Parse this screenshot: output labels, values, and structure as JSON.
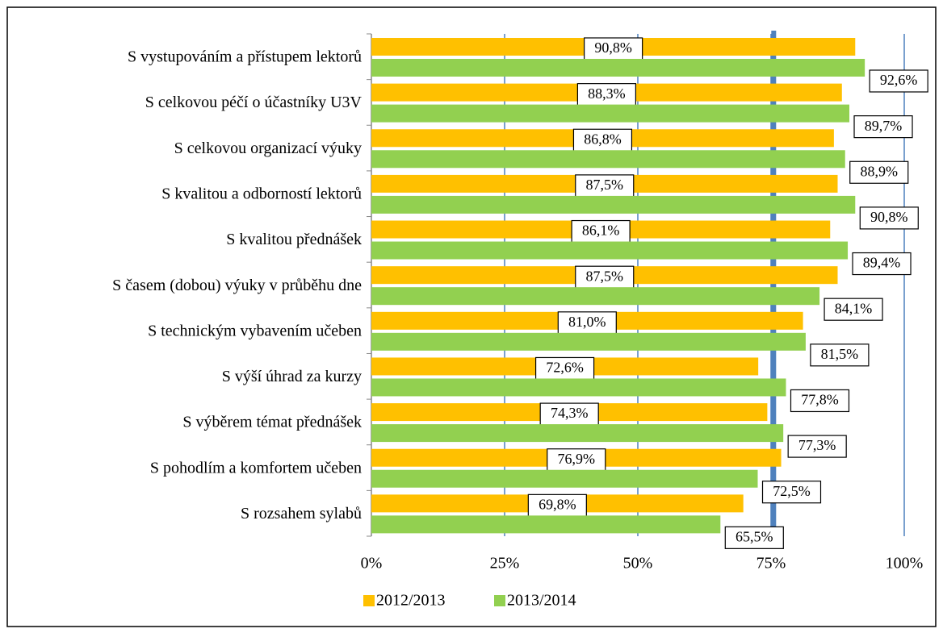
{
  "chart_data": {
    "type": "hbar",
    "categories": [
      "S vystupováním a přístupem lektorů",
      "S celkovou péčí o účastníky U3V",
      "S celkovou organizací výuky",
      "S kvalitou a odborností lektorů",
      "S kvalitou přednášek",
      "S časem (dobou) výuky v průběhu dne",
      "S technickým vybavením učeben",
      "S výší úhrad za kurzy",
      "S výběrem témat přednášek",
      "S pohodlím a komfortem učeben",
      "S rozsahem sylabů"
    ],
    "series": [
      {
        "name": "2012/2013",
        "color": "#ffc000",
        "values": [
          90.8,
          88.3,
          86.8,
          87.5,
          86.1,
          87.5,
          81.0,
          72.6,
          74.3,
          76.9,
          69.8
        ],
        "value_labels": [
          "90,8%",
          "88,3%",
          "86,8%",
          "87,5%",
          "86,1%",
          "87,5%",
          "81,0%",
          "72,6%",
          "74,3%",
          "76,9%",
          "69,8%"
        ]
      },
      {
        "name": "2013/2014",
        "color": "#92d050",
        "values": [
          92.6,
          89.7,
          88.9,
          90.8,
          89.4,
          84.1,
          81.5,
          77.8,
          77.3,
          72.5,
          65.5
        ],
        "value_labels": [
          "92,6%",
          "89,7%",
          "88,9%",
          "90,8%",
          "89,4%",
          "84,1%",
          "81,5%",
          "77,8%",
          "77,3%",
          "72,5%",
          "65,5%"
        ]
      }
    ],
    "xlim": [
      0,
      100
    ],
    "xticks": [
      {
        "value": 0,
        "label": "0%"
      },
      {
        "value": 25,
        "label": "25%"
      },
      {
        "value": 50,
        "label": "50%"
      },
      {
        "value": 75,
        "label": "75%"
      },
      {
        "value": 100,
        "label": "100%"
      }
    ],
    "grid": true,
    "grid_color": "#4f81bd",
    "reference_line": {
      "value": 75.5,
      "color": "#4f81bd"
    },
    "legend": "bottom"
  }
}
